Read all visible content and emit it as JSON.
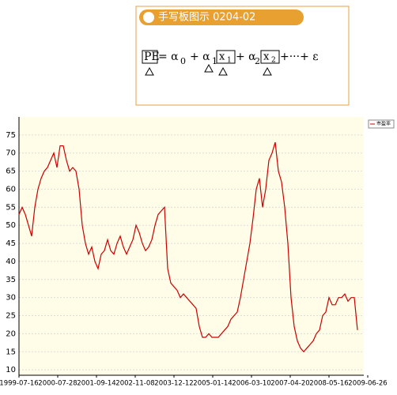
{
  "header": {
    "title": "手写板图示 0204-02",
    "formula": [
      "PE",
      "= α",
      "0",
      "+ α",
      "1",
      "x",
      "1",
      "+ α",
      "2",
      "x",
      "2",
      "+···+ ε"
    ]
  },
  "chart_data": {
    "type": "line",
    "series": [
      {
        "name": "市盈率",
        "color": "#cc0000",
        "values": [
          53,
          55,
          53,
          50,
          47,
          55,
          60,
          63,
          65,
          66,
          68,
          70,
          66,
          72,
          72,
          68,
          65,
          66,
          65,
          60,
          50,
          45,
          42,
          44,
          40,
          38,
          42,
          43,
          46,
          43,
          42,
          45,
          47,
          44,
          42,
          44,
          46,
          50,
          48,
          45,
          43,
          44,
          46,
          50,
          53,
          54,
          55,
          38,
          34,
          33,
          32,
          30,
          31,
          30,
          29,
          28,
          27,
          22,
          19,
          19,
          20,
          19,
          19,
          19,
          20,
          21,
          22,
          24,
          25,
          26,
          30,
          35,
          40,
          45,
          52,
          60,
          63,
          55,
          60,
          68,
          70,
          73,
          65,
          62,
          55,
          45,
          30,
          22,
          18,
          16,
          15,
          16,
          17,
          18,
          20,
          21,
          25,
          26,
          30,
          28,
          28,
          30,
          30,
          31,
          29,
          30,
          30,
          21
        ]
      }
    ],
    "xlim": [
      0,
      110.25
    ],
    "xticks": [
      {
        "value": 0,
        "label": "1999-07-16"
      },
      {
        "value": 12.25,
        "label": "2000-07-28"
      },
      {
        "value": 24.5,
        "label": "2001-09-14"
      },
      {
        "value": 36.75,
        "label": "2002-11-08"
      },
      {
        "value": 49,
        "label": "2003-12-12"
      },
      {
        "value": 61.25,
        "label": "2005-01-14"
      },
      {
        "value": 73.5,
        "label": "2006-03-10"
      },
      {
        "value": 85.75,
        "label": "2007-04-20"
      },
      {
        "value": 98,
        "label": "2008-05-16"
      },
      {
        "value": 110.25,
        "label": "2009-06-26"
      }
    ],
    "ylim": [
      8.5,
      80
    ],
    "yticks": [
      10,
      15,
      20,
      25,
      30,
      35,
      40,
      45,
      50,
      55,
      60,
      65,
      70,
      75
    ],
    "grid": true,
    "legend": "top-right"
  }
}
